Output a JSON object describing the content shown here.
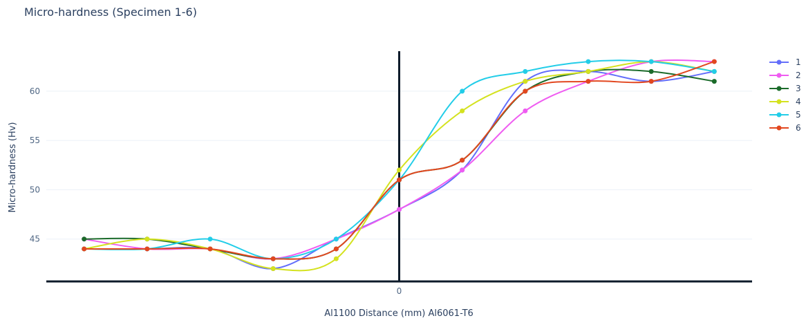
{
  "chart_data": {
    "type": "line",
    "title": "Micro-hardness (Specimen 1-6)",
    "xlabel": "Al1100 Distance (mm) Al6061-T6",
    "ylabel": "Micro-hardness (Hv)",
    "x": [
      -5,
      -4,
      -3,
      -2,
      -1,
      0,
      1,
      2,
      3,
      4,
      5
    ],
    "x_tick_labels": [
      "0"
    ],
    "y_ticks": [
      45,
      50,
      55,
      60
    ],
    "xlim": [
      -5.6,
      5.6
    ],
    "ylim": [
      40.7,
      64.9
    ],
    "grid": true,
    "legend_position": "right",
    "series": [
      {
        "name": "1",
        "color": "#636efa",
        "values": [
          44,
          44,
          44,
          42,
          45,
          48,
          52,
          61,
          62,
          61,
          62
        ]
      },
      {
        "name": "2",
        "color": "#ef5cf1",
        "values": [
          45,
          44,
          44,
          43,
          45,
          48,
          52,
          58,
          61,
          63,
          63
        ]
      },
      {
        "name": "3",
        "color": "#1b6b2a",
        "values": [
          45,
          45,
          44,
          43,
          44,
          51,
          53,
          60,
          62,
          62,
          61
        ]
      },
      {
        "name": "4",
        "color": "#d4e21f",
        "values": [
          44,
          45,
          44,
          42,
          43,
          52,
          58,
          61,
          62,
          63,
          62
        ]
      },
      {
        "name": "5",
        "color": "#22cde8",
        "values": [
          44,
          44,
          45,
          43,
          45,
          51,
          60,
          62,
          63,
          63,
          62
        ]
      },
      {
        "name": "6",
        "color": "#e2471f",
        "values": [
          44,
          44,
          44,
          43,
          44,
          51,
          53,
          60,
          61,
          61,
          63
        ]
      }
    ]
  }
}
